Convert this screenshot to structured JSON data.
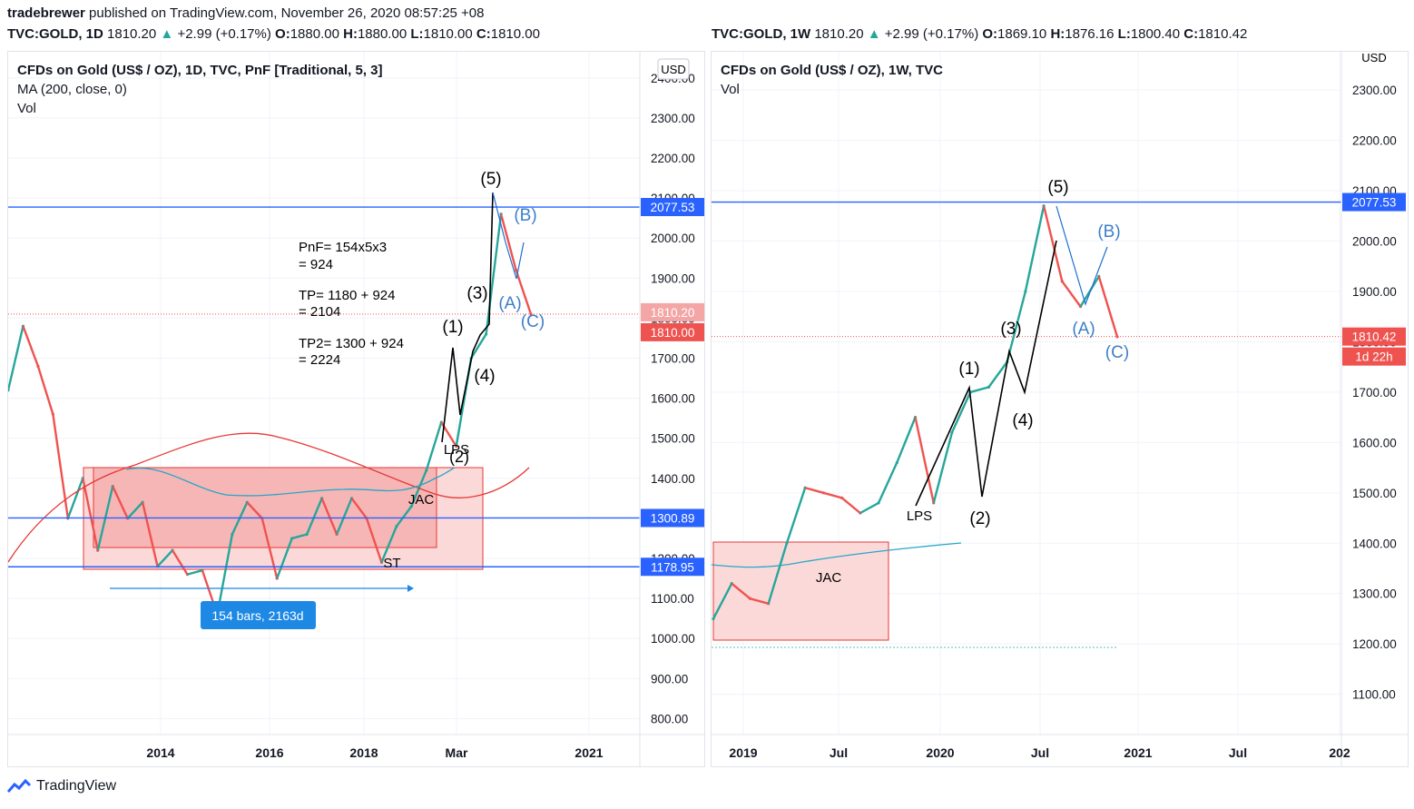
{
  "header": {
    "user": "tradebrewer",
    "published": "published on TradingView.com, November 26, 2020 08:57:25 +08"
  },
  "left": {
    "ticker": "TVC:GOLD, 1D",
    "price": "1810.20",
    "change": "+2.99 (+0.17%)",
    "o_label": "O:",
    "o": "1880.00",
    "h_label": "H:",
    "h": "1880.00",
    "l_label": "L:",
    "l": "1810.00",
    "c_label": "C:",
    "c": "1810.00",
    "title": "CFDs on Gold (US$ / OZ), 1D, TVC, PnF [Traditional, 5, 3]",
    "ma": "MA (200, close, 0)",
    "vol": "Vol",
    "currency": "USD",
    "notes": [
      "PnF= 154x5x3",
      "= 924",
      "TP= 1180 + 924",
      "= 2104",
      "TP2= 1300 + 924",
      "= 2224"
    ],
    "range_label": "154 bars, 2163d",
    "labels": {
      "w5": "(5)",
      "wB": "(B)",
      "w3": "(3)",
      "wA": "(A)",
      "wC": "(C)",
      "w1": "(1)",
      "w4": "(4)",
      "w2": "(2)",
      "lps": "LPS",
      "jac": "JAC",
      "st": "ST"
    },
    "price_tags": {
      "res": "2077.53",
      "cur": "1810.20",
      "cur2": "1810.00",
      "mid": "1300.89",
      "low": "1178.95"
    }
  },
  "right": {
    "ticker": "TVC:GOLD, 1W",
    "price": "1810.20",
    "change": "+2.99 (+0.17%)",
    "o_label": "O:",
    "o": "1869.10",
    "h_label": "H:",
    "h": "1876.16",
    "l_label": "L:",
    "l": "1800.40",
    "c_label": "C:",
    "c": "1810.42",
    "title": "CFDs on Gold (US$ / OZ), 1W, TVC",
    "vol": "Vol",
    "currency": "USD",
    "labels": {
      "w5": "(5)",
      "wB": "(B)",
      "w3": "(3)",
      "wA": "(A)",
      "wC": "(C)",
      "w1": "(1)",
      "w4": "(4)",
      "w2": "(2)",
      "lps": "LPS",
      "jac": "JAC"
    },
    "price_tags": {
      "res": "2077.53",
      "cur": "1810.42",
      "timer": "1d 22h"
    }
  },
  "footer": {
    "brand": "TradingView"
  },
  "colors": {
    "up": "#26a69a",
    "down": "#ef5350",
    "line": "#2962ff",
    "blue": "#1e6fcf",
    "box": "#f7b6b6",
    "ma": "#e53935",
    "ma2": "#26a6c9"
  },
  "chart_data": [
    {
      "type": "line",
      "title": "CFDs on Gold (US$ / OZ), 1D, TVC, PnF [Traditional, 5, 3]",
      "y_ticks": [
        800,
        900,
        1000,
        1100,
        1200,
        1300,
        1400,
        1500,
        1600,
        1700,
        1800,
        1900,
        2000,
        2100,
        2200,
        2300,
        2400
      ],
      "x_ticks": [
        "2014",
        "2016",
        "2018",
        "Mar",
        "2021"
      ],
      "ylim": [
        760,
        2420
      ],
      "series": [
        {
          "name": "PnF",
          "x": [
            "2012-07",
            "2012-10",
            "2013-01",
            "2013-04",
            "2013-06",
            "2013-09",
            "2013-12",
            "2014-03",
            "2014-06",
            "2014-09",
            "2014-12",
            "2015-03",
            "2015-06",
            "2015-09",
            "2015-12",
            "2016-03",
            "2016-06",
            "2016-09",
            "2016-12",
            "2017-03",
            "2017-06",
            "2017-09",
            "2017-12",
            "2018-03",
            "2018-06",
            "2018-09",
            "2018-12",
            "2019-03",
            "2019-06",
            "2019-09",
            "2019-12",
            "2020-03",
            "2020-06",
            "2020-08",
            "2020-09",
            "2020-11"
          ],
          "values": [
            1620,
            1780,
            1680,
            1560,
            1300,
            1400,
            1220,
            1380,
            1300,
            1340,
            1180,
            1220,
            1160,
            1170,
            1060,
            1260,
            1340,
            1300,
            1150,
            1250,
            1260,
            1350,
            1260,
            1350,
            1300,
            1190,
            1280,
            1330,
            1420,
            1540,
            1480,
            1700,
            1760,
            2060,
            1920,
            1810
          ]
        }
      ],
      "levels": [
        2077.53,
        1810.2,
        1300.89,
        1178.95
      ]
    },
    {
      "type": "line",
      "title": "CFDs on Gold (US$ / OZ), 1W, TVC",
      "y_ticks": [
        1100,
        1200,
        1300,
        1400,
        1500,
        1600,
        1700,
        1800,
        1900,
        2000,
        2100,
        2200,
        2300
      ],
      "x_ticks": [
        "2019",
        "Jul",
        "2020",
        "Jul",
        "2021",
        "Jul",
        "202"
      ],
      "ylim": [
        1020,
        2340
      ],
      "series": [
        {
          "name": "Weekly",
          "x": [
            "2018-12",
            "2019-02",
            "2019-04",
            "2019-05",
            "2019-06",
            "2019-08",
            "2019-09",
            "2019-10",
            "2019-11",
            "2019-12",
            "2020-01",
            "2020-02",
            "2020-03",
            "2020-03",
            "2020-04",
            "2020-05",
            "2020-06",
            "2020-07",
            "2020-08",
            "2020-08",
            "2020-09",
            "2020-10",
            "2020-11"
          ],
          "values": [
            1250,
            1320,
            1290,
            1280,
            1400,
            1510,
            1500,
            1490,
            1460,
            1480,
            1560,
            1650,
            1480,
            1620,
            1700,
            1710,
            1760,
            1900,
            2070,
            1920,
            1870,
            1930,
            1810
          ]
        }
      ],
      "levels": [
        2077.53,
        1810.42
      ]
    }
  ]
}
